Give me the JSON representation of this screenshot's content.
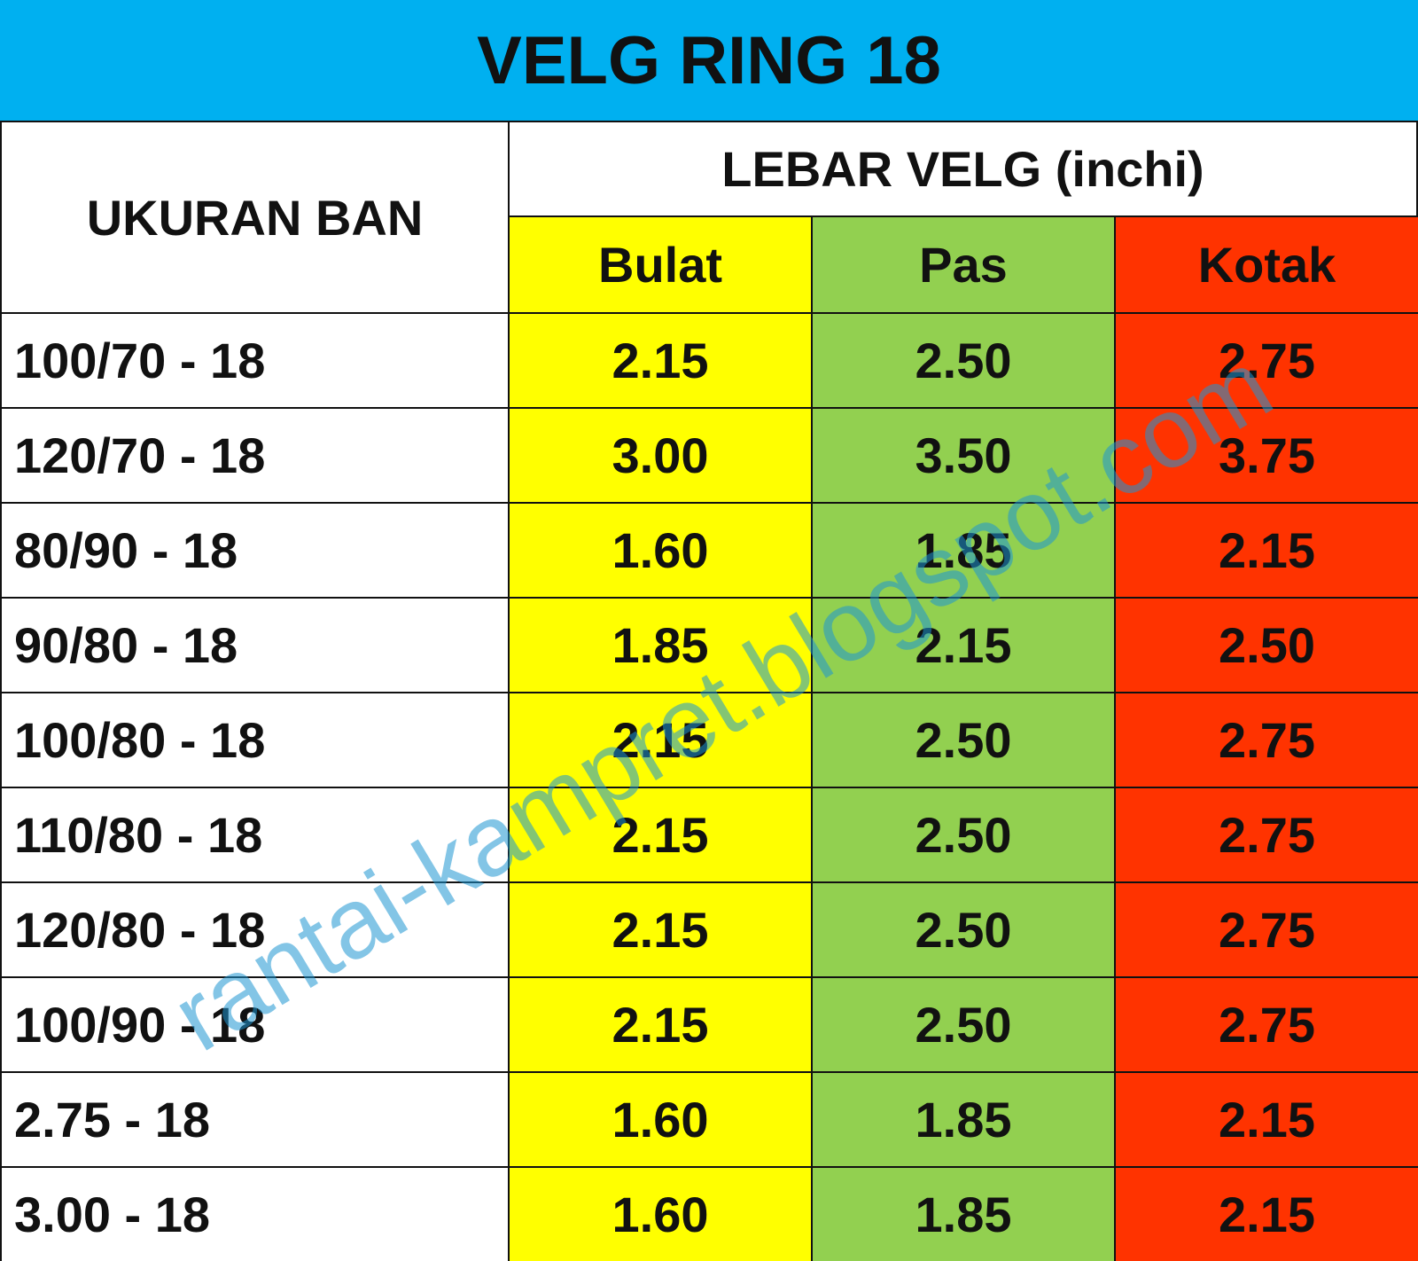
{
  "title": "VELG RING 18",
  "header": {
    "size_label": "UKURAN BAN",
    "group_label": "LEBAR VELG (inchi)",
    "columns": [
      "Bulat",
      "Pas",
      "Kotak"
    ]
  },
  "table": {
    "rows": [
      [
        "100/70 - 18",
        "2.15",
        "2.50",
        "2.75"
      ],
      [
        "120/70 - 18",
        "3.00",
        "3.50",
        "3.75"
      ],
      [
        "80/90 - 18",
        "1.60",
        "1.85",
        "2.15"
      ],
      [
        "90/80 - 18",
        "1.85",
        "2.15",
        "2.50"
      ],
      [
        "100/80 - 18",
        "2.15",
        "2.50",
        "2.75"
      ],
      [
        "110/80 - 18",
        "2.15",
        "2.50",
        "2.75"
      ],
      [
        "120/80 - 18",
        "2.15",
        "2.50",
        "2.75"
      ],
      [
        "100/90 - 18",
        "2.15",
        "2.50",
        "2.75"
      ],
      [
        "2.75 - 18",
        "1.60",
        "1.85",
        "2.15"
      ],
      [
        "3.00 - 18",
        "1.60",
        "1.85",
        "2.15"
      ]
    ]
  },
  "watermark": "rantai-kampret.blogspot.com"
}
